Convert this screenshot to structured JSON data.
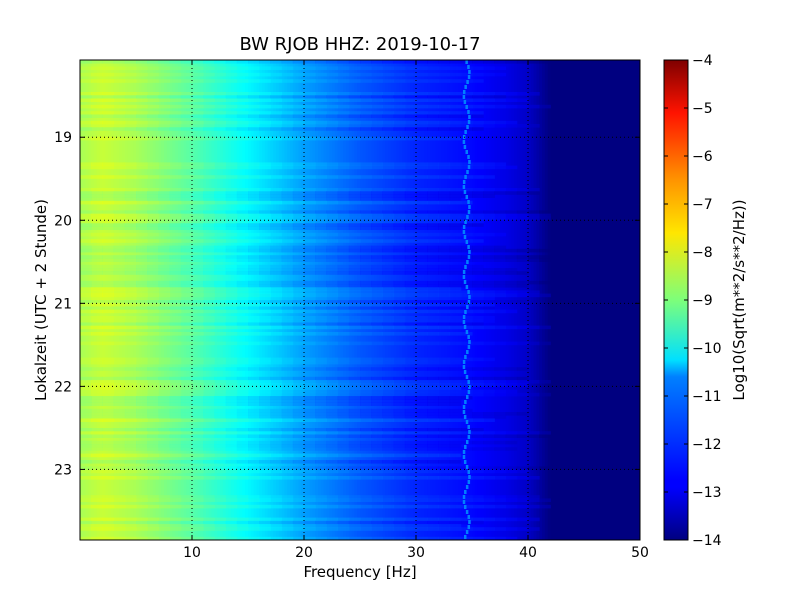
{
  "chart_data": {
    "type": "heatmap",
    "title": "BW RJOB HHZ: 2019-10-17",
    "xlabel": "Frequency [Hz]",
    "ylabel": "Lokalzeit (UTC + 2 Stunde)",
    "xlim": [
      0,
      50
    ],
    "ylim": [
      18.07,
      23.85
    ],
    "y_inverted": true,
    "x_ticks": [
      10,
      20,
      30,
      40,
      50
    ],
    "x_tick_labels": [
      "10",
      "20",
      "30",
      "40",
      "50"
    ],
    "y_ticks": [
      19,
      20,
      21,
      22,
      23
    ],
    "y_tick_labels": [
      "19",
      "20",
      "21",
      "22",
      "23"
    ],
    "grid": true,
    "colormap": "jet",
    "colorbar": {
      "label": "Log10(Sqrt(m**2/s**2/Hz))",
      "range": [
        -14,
        -4
      ],
      "ticks": [
        -4,
        -5,
        -6,
        -7,
        -8,
        -9,
        -10,
        -11,
        -12,
        -13,
        -14
      ],
      "tick_labels": [
        "−4",
        "−5",
        "−6",
        "−7",
        "−8",
        "−9",
        "−10",
        "−11",
        "−12",
        "−13",
        "−14"
      ]
    },
    "frequency_profile": {
      "frequency_hz": [
        0,
        2,
        5,
        10,
        15,
        20,
        25,
        30,
        35,
        38,
        40,
        42,
        50
      ],
      "log10_amplitude": [
        -8.6,
        -8.3,
        -8.6,
        -9.4,
        -10.3,
        -11.2,
        -11.9,
        -12.4,
        -12.7,
        -13.0,
        -13.3,
        -14.0,
        -14.0
      ]
    },
    "spectral_line": {
      "frequency_hz": 34.5,
      "log10_amplitude": -11.5
    }
  }
}
